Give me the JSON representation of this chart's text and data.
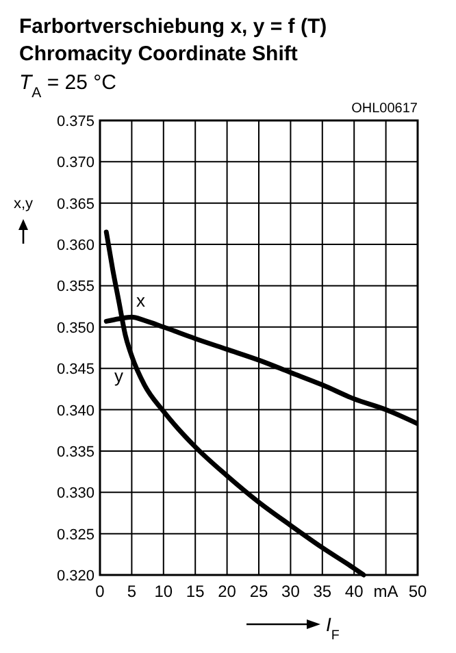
{
  "chart_data": {
    "type": "line",
    "title": "Farbortverschiebung x, y = f (T)",
    "subtitle": "Chromacity Coordinate Shift",
    "annotations": [
      "T$_{A}$ = 25 °C",
      "OHL00617"
    ],
    "xlabel": "I$_{F}$",
    "ylabel": "x,y",
    "xlim": [
      0,
      50
    ],
    "xticks": [
      0,
      5,
      10,
      15,
      20,
      25,
      30,
      35,
      40,
      {
        "value": 45,
        "label": "mA"
      },
      50
    ],
    "ylim": [
      0.32,
      0.375
    ],
    "yticks": [
      {
        "value": 0.32,
        "label": "0.320"
      },
      0.325,
      {
        "value": 0.33,
        "label": "0.330"
      },
      0.335,
      {
        "value": 0.34,
        "label": "0.340"
      },
      0.345,
      {
        "value": 0.35,
        "label": "0.350"
      },
      0.355,
      {
        "value": 0.36,
        "label": "0.360"
      },
      0.365,
      {
        "value": 0.37,
        "label": "0.370"
      },
      0.375
    ],
    "grid": true,
    "series": [
      {
        "name": "x",
        "color": "#000000",
        "x": [
          1,
          3,
          5,
          7,
          10,
          15,
          20,
          25,
          30,
          35,
          40,
          45,
          50
        ],
        "values": [
          0.3507,
          0.351,
          0.3512,
          0.3508,
          0.35,
          0.3486,
          0.3473,
          0.346,
          0.3445,
          0.343,
          0.3413,
          0.34,
          0.3383
        ]
      },
      {
        "name": "y",
        "color": "#000000",
        "x": [
          1,
          2,
          3,
          4,
          5,
          7,
          10,
          15,
          20,
          25,
          30,
          35,
          40,
          41.5
        ],
        "values": [
          0.3615,
          0.357,
          0.353,
          0.349,
          0.3465,
          0.343,
          0.3398,
          0.3355,
          0.332,
          0.3288,
          0.326,
          0.3233,
          0.3208,
          0.32
        ]
      }
    ]
  }
}
